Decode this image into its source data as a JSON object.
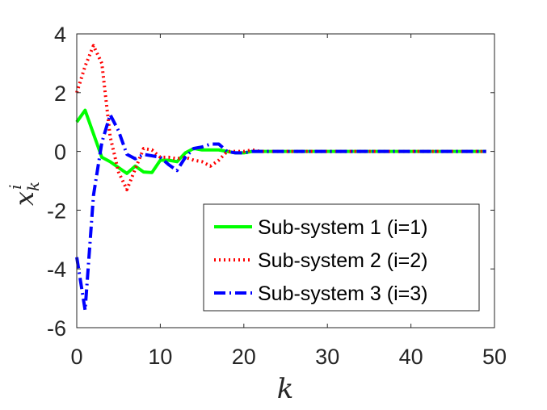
{
  "chart_data": {
    "type": "line",
    "title": "",
    "xlabel": "k",
    "ylabel": {
      "base": "x",
      "sup": "i",
      "sub": "k"
    },
    "xlim": [
      0,
      50
    ],
    "ylim": [
      -6,
      4
    ],
    "xticks": [
      0,
      10,
      20,
      30,
      40,
      50
    ],
    "yticks": [
      -6,
      -4,
      -2,
      0,
      2,
      4
    ],
    "xtick_labels": [
      "0",
      "10",
      "20",
      "30",
      "40",
      "50"
    ],
    "ytick_labels": [
      "-6",
      "-4",
      "-2",
      "0",
      "2",
      "4"
    ],
    "grid": false,
    "legend_position": "bottom-right",
    "series": [
      {
        "name": "Sub-system 1 (i=1)",
        "color": "#00ff00",
        "dash": "solid",
        "x": [
          0,
          1,
          2,
          3,
          4,
          5,
          6,
          7,
          8,
          9,
          10,
          11,
          12,
          13,
          14,
          15,
          16,
          17,
          18,
          19,
          20,
          21,
          22,
          23,
          24,
          25,
          26,
          27,
          28,
          29,
          30,
          31,
          32,
          33,
          34,
          35,
          36,
          37,
          38,
          39,
          40,
          41,
          42,
          43,
          44,
          45,
          46,
          47,
          48,
          49
        ],
        "y": [
          1.0,
          1.4,
          0.6,
          -0.2,
          -0.35,
          -0.55,
          -0.75,
          -0.5,
          -0.7,
          -0.72,
          -0.3,
          -0.3,
          -0.35,
          -0.05,
          0.1,
          0.05,
          0.05,
          0.05,
          0.0,
          -0.05,
          -0.05,
          0.0,
          0.0,
          0,
          0,
          0,
          0,
          0,
          0,
          0,
          0,
          0,
          0,
          0,
          0,
          0,
          0,
          0,
          0,
          0,
          0,
          0,
          0,
          0,
          0,
          0,
          0,
          0,
          0,
          0
        ]
      },
      {
        "name": "Sub-system 2 (i=2)",
        "color": "#ff0000",
        "dash": "dotted",
        "x": [
          0,
          1,
          2,
          3,
          4,
          5,
          6,
          7,
          8,
          9,
          10,
          11,
          12,
          13,
          14,
          15,
          16,
          17,
          18,
          19,
          20,
          21,
          22,
          23,
          24,
          25,
          26,
          27,
          28,
          29,
          30,
          31,
          32,
          33,
          34,
          35,
          36,
          37,
          38,
          39,
          40,
          41,
          42,
          43,
          44,
          45,
          46,
          47,
          48,
          49
        ],
        "y": [
          2.0,
          2.9,
          3.6,
          3.0,
          0.5,
          -0.7,
          -1.3,
          -0.6,
          0.1,
          0.05,
          -0.2,
          -0.2,
          -0.25,
          -0.2,
          -0.3,
          -0.35,
          -0.5,
          -0.3,
          0.0,
          0.0,
          0.0,
          0.05,
          0.0,
          0,
          0,
          0,
          0,
          0,
          0,
          0,
          0,
          0,
          0,
          0,
          0,
          0,
          0,
          0,
          0,
          0,
          0,
          0,
          0,
          0,
          0,
          0,
          0,
          0,
          0,
          0
        ]
      },
      {
        "name": "Sub-system 3 (i=3)",
        "color": "#0000ff",
        "dash": "dashdot",
        "x": [
          0,
          1,
          2,
          3,
          4,
          5,
          6,
          7,
          8,
          9,
          10,
          11,
          12,
          13,
          14,
          15,
          16,
          17,
          18,
          19,
          20,
          21,
          22,
          23,
          24,
          25,
          26,
          27,
          28,
          29,
          30,
          31,
          32,
          33,
          34,
          35,
          36,
          37,
          38,
          39,
          40,
          41,
          42,
          43,
          44,
          45,
          46,
          47,
          48,
          49
        ],
        "y": [
          -3.6,
          -5.4,
          -1.5,
          0.3,
          1.25,
          0.7,
          -0.1,
          -0.25,
          -0.1,
          -0.15,
          -0.2,
          -0.45,
          -0.65,
          -0.2,
          0.1,
          0.15,
          0.25,
          0.25,
          0.0,
          -0.05,
          -0.05,
          0.0,
          0.0,
          0,
          0,
          0,
          0,
          0,
          0,
          0,
          0,
          0,
          0,
          0,
          0,
          0,
          0,
          0,
          0,
          0,
          0,
          0,
          0,
          0,
          0,
          0,
          0,
          0,
          0,
          0
        ]
      }
    ]
  }
}
